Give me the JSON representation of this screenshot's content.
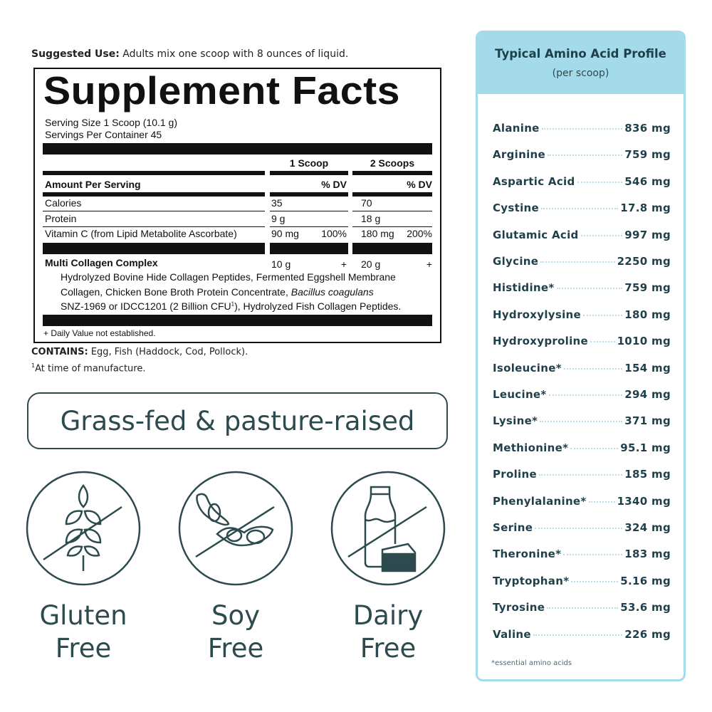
{
  "suggested_use": {
    "label": "Suggested Use:",
    "text": "Adults mix one scoop with 8 ounces of liquid."
  },
  "facts": {
    "title": "Supplement Facts",
    "serving_size": "Serving Size 1 Scoop (10.1 g)",
    "servings_per_container": "Servings Per Container 45",
    "col1": "1 Scoop",
    "col2": "2 Scoops",
    "amount_per_serving": "Amount Per Serving",
    "dv": "% DV",
    "rows": [
      {
        "name": "Calories",
        "v1": "35",
        "d1": "",
        "v2": "70",
        "d2": ""
      },
      {
        "name": "Protein",
        "v1": "9 g",
        "d1": "",
        "v2": "18 g",
        "d2": ""
      },
      {
        "name": "Vitamin C (from Lipid Metabolite Ascorbate)",
        "v1": "90 mg",
        "d1": "100%",
        "v2": "180 mg",
        "d2": "200%"
      }
    ],
    "complex": {
      "name": "Multi Collagen Complex",
      "v1": "10 g",
      "d1": "+",
      "v2": "20 g",
      "d2": "+",
      "ing1": "Hydrolyzed Bovine Hide Collagen Peptides, Fermented Eggshell Membrane",
      "ing2a": "Collagen, Chicken Bone Broth Protein Concentrate, ",
      "ing2b": "Bacillus coagulans",
      "ing3a": "SNZ-1969 or IDCC1201 (2 Billion CFU",
      "ing3sup": "1",
      "ing3b": "), Hydrolyzed Fish Collagen Peptides."
    },
    "dv_note": "+ Daily Value not established."
  },
  "contains": {
    "label": "CONTAINS:",
    "text": "Egg, Fish (Haddock, Cod, Pollock)."
  },
  "footnote": {
    "sup": "1",
    "text": "At time of manufacture."
  },
  "badge": "Grass-fed & pasture-raised",
  "free_icons": [
    {
      "icon": "no-gluten-icon",
      "line1": "Gluten",
      "line2": "Free"
    },
    {
      "icon": "no-soy-icon",
      "line1": "Soy",
      "line2": "Free"
    },
    {
      "icon": "no-dairy-icon",
      "line1": "Dairy",
      "line2": "Free"
    }
  ],
  "amino": {
    "title": "Typical Amino Acid Profile",
    "subtitle": "(per scoop)",
    "rows": [
      {
        "name": "Alanine",
        "value": "836 mg"
      },
      {
        "name": "Arginine",
        "value": "759 mg"
      },
      {
        "name": "Aspartic Acid",
        "value": "546 mg"
      },
      {
        "name": "Cystine",
        "value": "17.8 mg"
      },
      {
        "name": "Glutamic Acid",
        "value": "997 mg"
      },
      {
        "name": "Glycine",
        "value": "2250 mg"
      },
      {
        "name": "Histidine*",
        "value": "759 mg"
      },
      {
        "name": "Hydroxylysine",
        "value": "180 mg"
      },
      {
        "name": "Hydroxyproline",
        "value": "1010 mg"
      },
      {
        "name": "Isoleucine*",
        "value": "154 mg"
      },
      {
        "name": "Leucine*",
        "value": "294 mg"
      },
      {
        "name": "Lysine*",
        "value": "371 mg"
      },
      {
        "name": "Methionine*",
        "value": "95.1 mg"
      },
      {
        "name": "Proline",
        "value": "185 mg"
      },
      {
        "name": "Phenylalanine*",
        "value": "1340 mg"
      },
      {
        "name": "Serine",
        "value": "324 mg"
      },
      {
        "name": "Theronine*",
        "value": "183 mg"
      },
      {
        "name": "Tryptophan*",
        "value": "5.16 mg"
      },
      {
        "name": "Tyrosine",
        "value": "53.6 mg"
      },
      {
        "name": "Valine",
        "value": "226 mg"
      }
    ],
    "footnote": "*essential amino acids"
  },
  "colors": {
    "teal_text": "#1f3f4a",
    "icon": "#2d4a4f",
    "panel_blue": "#a3dbea"
  }
}
